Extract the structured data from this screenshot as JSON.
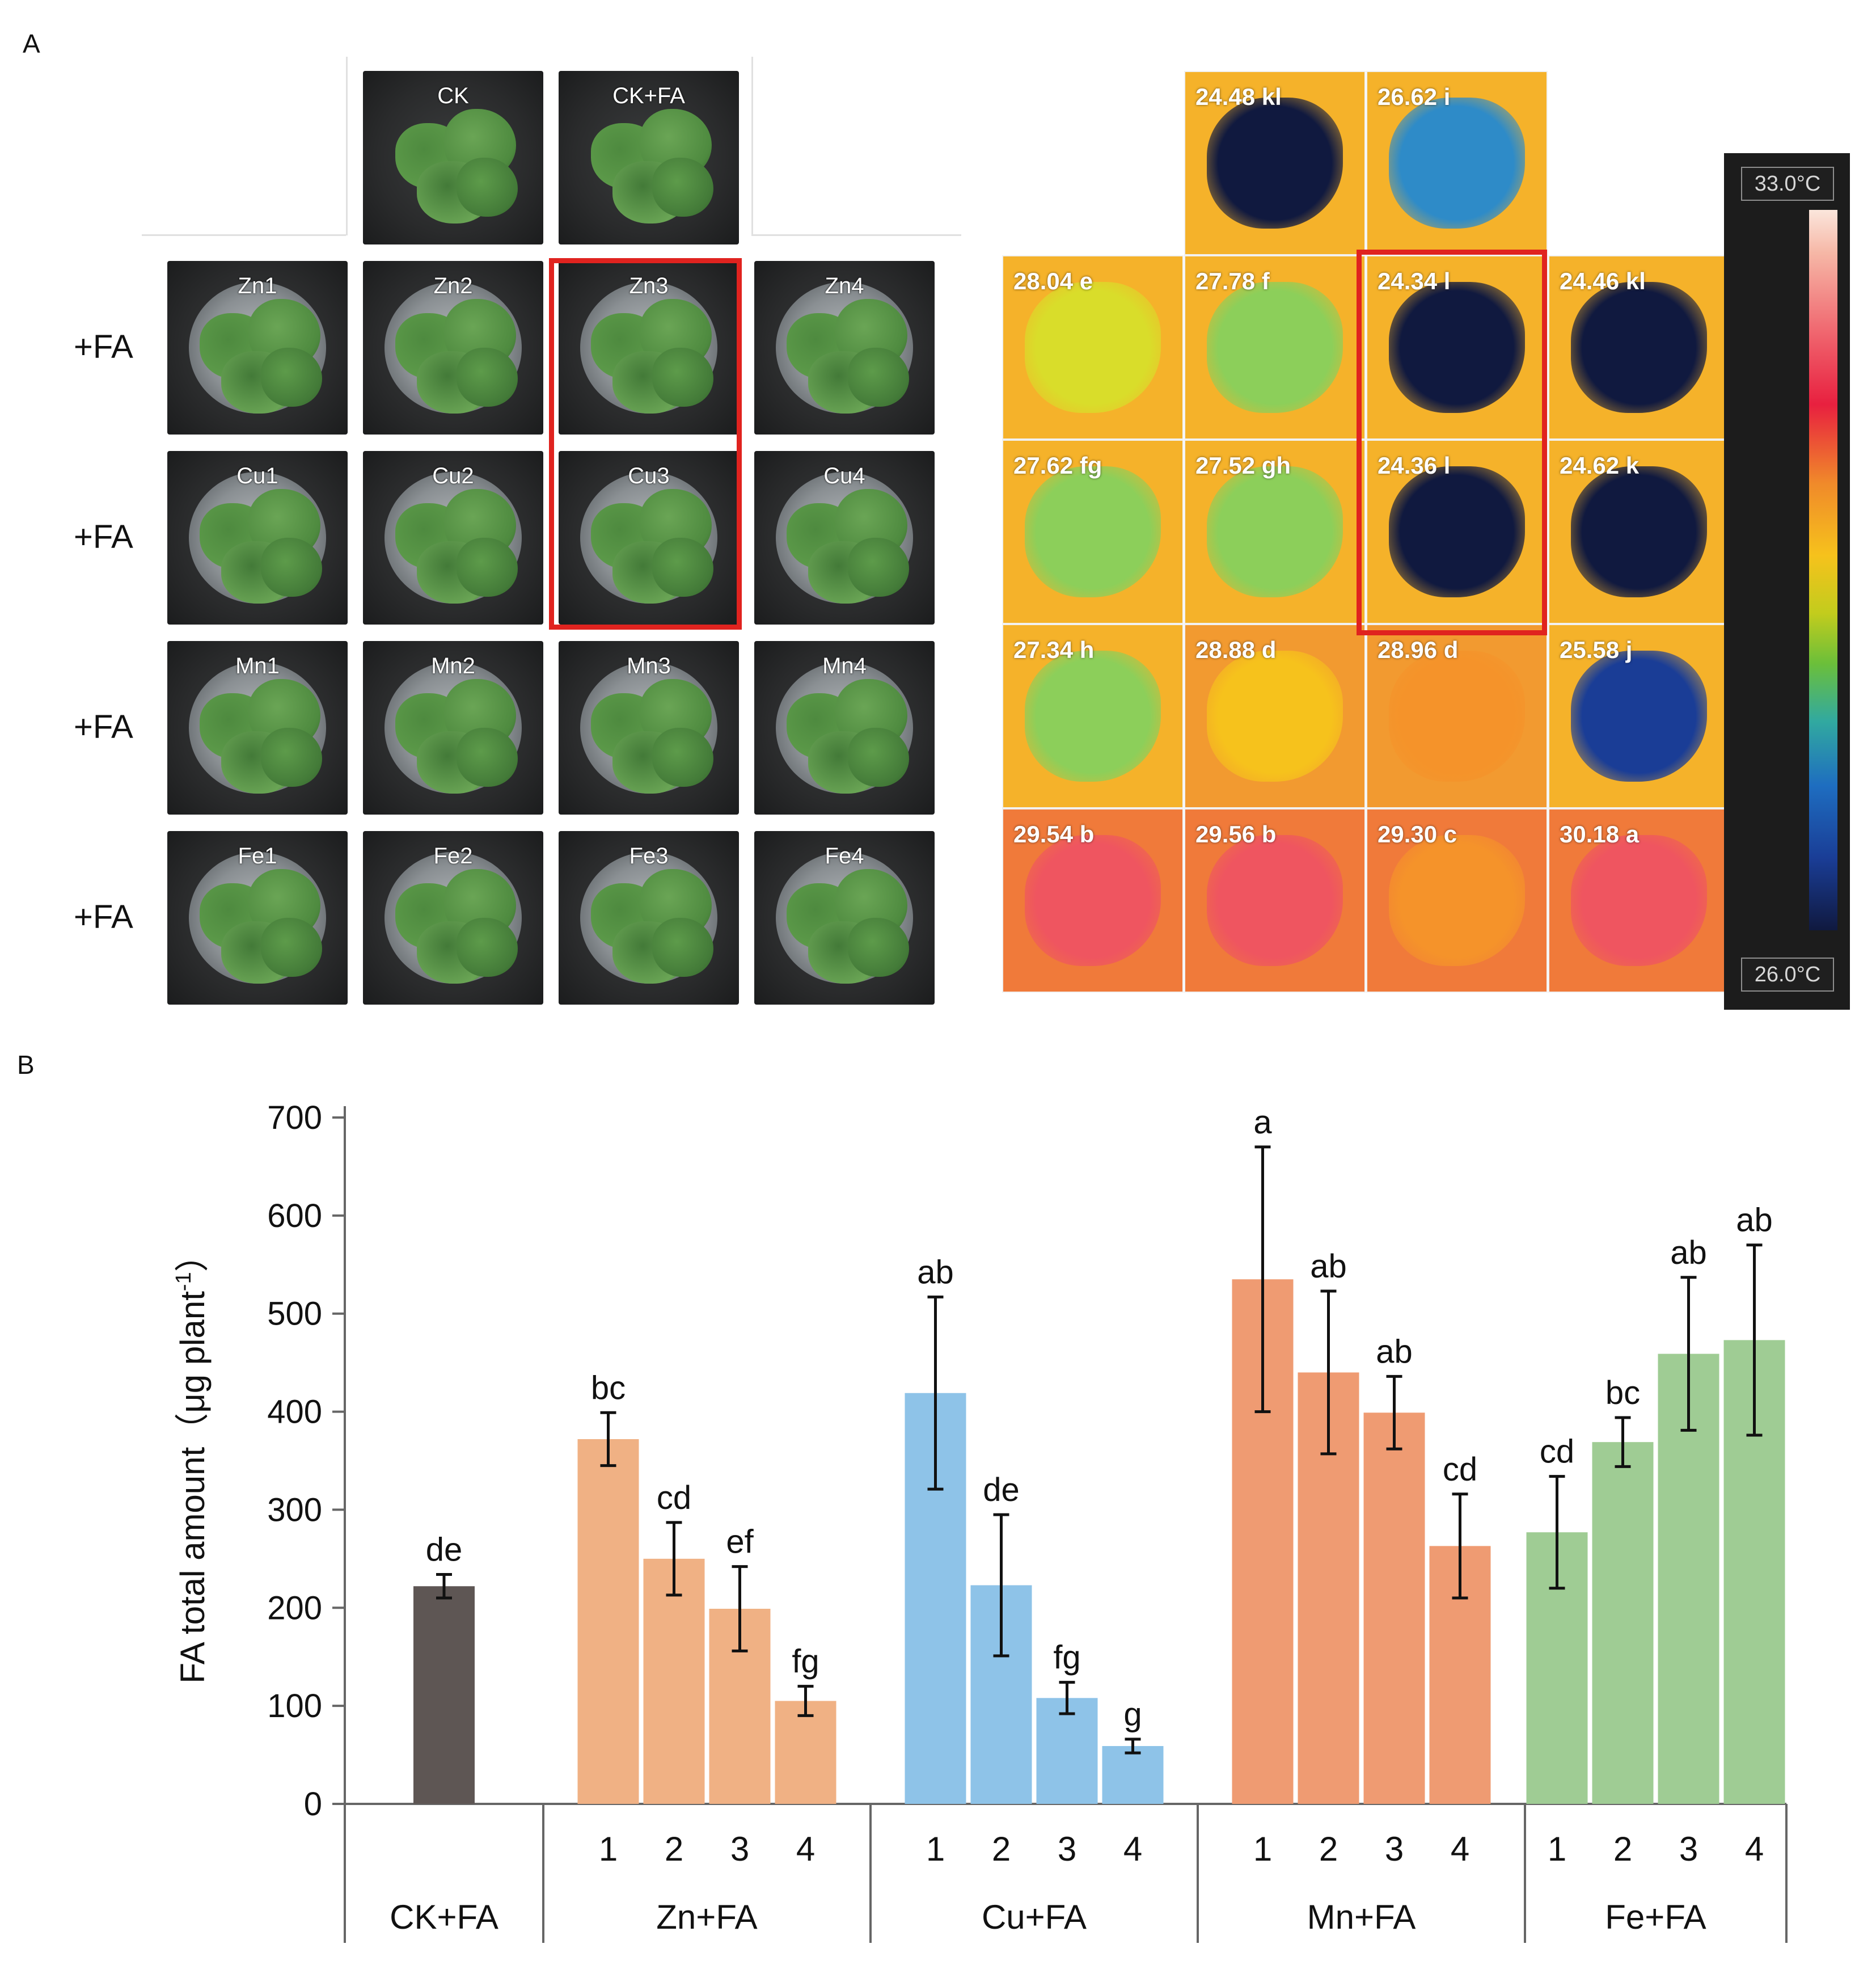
{
  "panel_a_label": "A",
  "panel_b_label": "B",
  "photos": {
    "top_row": [
      "CK",
      "CK+FA"
    ],
    "row_labels": [
      "+FA",
      "+FA",
      "+FA",
      "+FA"
    ],
    "rows": [
      [
        "Zn1",
        "Zn2",
        "Zn3",
        "Zn4"
      ],
      [
        "Cu1",
        "Cu2",
        "Cu3",
        "Cu4"
      ],
      [
        "Mn1",
        "Mn2",
        "Mn3",
        "Mn4"
      ],
      [
        "Fe1",
        "Fe2",
        "Fe3",
        "Fe4"
      ]
    ]
  },
  "thermal": {
    "top_row": [
      "24.48 kl",
      "26.62 i"
    ],
    "rows": [
      [
        "28.04 e",
        "27.78 f",
        "24.34 l",
        "24.46 kl"
      ],
      [
        "27.62 fg",
        "27.52 gh",
        "24.36 l",
        "24.62 k"
      ],
      [
        "27.34 h",
        "28.88 d",
        "28.96 d",
        "25.58 j"
      ],
      [
        "29.54 b",
        "29.56 b",
        "29.30 c",
        "30.18 a"
      ]
    ],
    "top_temperatures": [
      24.48,
      26.62
    ],
    "temperatures": [
      [
        28.04,
        27.78,
        24.34,
        24.46
      ],
      [
        27.62,
        27.52,
        24.36,
        24.62
      ],
      [
        27.34,
        28.88,
        28.96,
        25.58
      ],
      [
        29.54,
        29.56,
        29.3,
        30.18
      ]
    ],
    "colorbar_max": "33.0°C",
    "colorbar_min": "26.0°C"
  },
  "chart_data": {
    "type": "bar",
    "title": "",
    "ylabel_main": "FA total amount（μg plant",
    "ylabel_sup": "-1",
    "ylabel_end": "）",
    "ylim": [
      0,
      700
    ],
    "yticks": [
      "0",
      "100",
      "200",
      "300",
      "400",
      "500",
      "600",
      "700"
    ],
    "groups": [
      {
        "name": "CK+FA",
        "color": "#5e5654",
        "labels": [
          ""
        ],
        "values": [
          222
        ],
        "errors": [
          12
        ],
        "letters": [
          "de"
        ]
      },
      {
        "name": "Zn+FA",
        "color": "#f0b184",
        "labels": [
          "1",
          "2",
          "3",
          "4"
        ],
        "values": [
          372,
          250,
          199,
          105
        ],
        "errors": [
          27,
          37,
          43,
          15
        ],
        "letters": [
          "bc",
          "cd",
          "ef",
          "fg"
        ]
      },
      {
        "name": "Cu+FA",
        "color": "#8ec3e8",
        "labels": [
          "1",
          "2",
          "3",
          "4"
        ],
        "values": [
          419,
          223,
          108,
          59
        ],
        "errors": [
          98,
          72,
          16,
          7
        ],
        "letters": [
          "ab",
          "de",
          "fg",
          "g"
        ]
      },
      {
        "name": "Mn+FA",
        "color": "#ef9b72",
        "labels": [
          "1",
          "2",
          "3",
          "4"
        ],
        "values": [
          535,
          440,
          399,
          263
        ],
        "errors": [
          135,
          83,
          37,
          53
        ],
        "letters": [
          "a",
          "ab",
          "ab",
          "cd"
        ]
      },
      {
        "name": "Fe+FA",
        "color": "#9fcc94",
        "labels": [
          "1",
          "2",
          "3",
          "4"
        ],
        "values": [
          277,
          369,
          459,
          473
        ],
        "errors": [
          57,
          25,
          78,
          97
        ],
        "letters": [
          "cd",
          "bc",
          "ab",
          "ab"
        ]
      }
    ]
  }
}
